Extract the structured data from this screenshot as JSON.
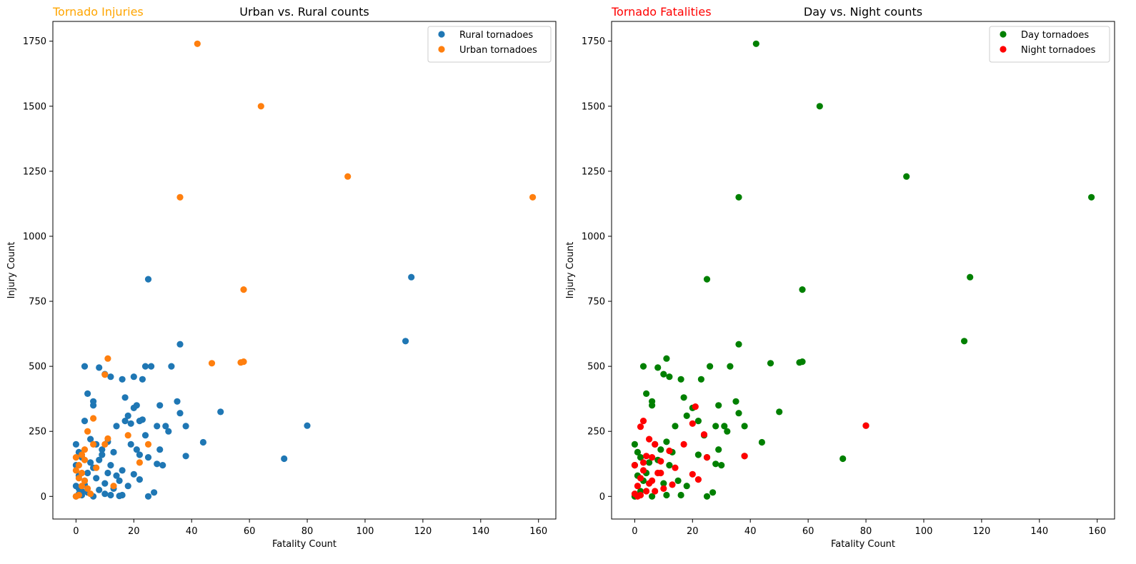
{
  "chart_data": [
    {
      "type": "scatter",
      "title": "Urban vs. Rural counts",
      "corner_title": "Tornado Injuries",
      "corner_title_color": "#ffa500",
      "xlabel": "Fatality Count",
      "ylabel": "Injury Count",
      "xlim": [
        -8,
        166
      ],
      "ylim": [
        -87,
        1826
      ],
      "xticks": [
        0,
        20,
        40,
        60,
        80,
        100,
        120,
        140,
        160
      ],
      "yticks": [
        0,
        250,
        500,
        750,
        1000,
        1250,
        1500,
        1750
      ],
      "grid": false,
      "legend_position": "top-right",
      "series": [
        {
          "name": "Rural tornadoes",
          "color": "#1f77b4",
          "points": [
            [
              0,
              200
            ],
            [
              1,
              170
            ],
            [
              0,
              120
            ],
            [
              2,
              150
            ],
            [
              1,
              80
            ],
            [
              0,
              40
            ],
            [
              3,
              60
            ],
            [
              4,
              90
            ],
            [
              2,
              20
            ],
            [
              5,
              130
            ],
            [
              6,
              110
            ],
            [
              7,
              70
            ],
            [
              8,
              140
            ],
            [
              9,
              160
            ],
            [
              10,
              50
            ],
            [
              11,
              90
            ],
            [
              12,
              120
            ],
            [
              13,
              30
            ],
            [
              14,
              80
            ],
            [
              15,
              60
            ],
            [
              16,
              100
            ],
            [
              3,
              500
            ],
            [
              3,
              290
            ],
            [
              4,
              395
            ],
            [
              6,
              350
            ],
            [
              6,
              365
            ],
            [
              8,
              495
            ],
            [
              10,
              470
            ],
            [
              12,
              460
            ],
            [
              16,
              450
            ],
            [
              17,
              380
            ],
            [
              20,
              460
            ],
            [
              23,
              450
            ],
            [
              24,
              500
            ],
            [
              18,
              310
            ],
            [
              20,
              340
            ],
            [
              21,
              350
            ],
            [
              22,
              290
            ],
            [
              23,
              295
            ],
            [
              19,
              280
            ],
            [
              25,
              835
            ],
            [
              26,
              500
            ],
            [
              29,
              350
            ],
            [
              28,
              270
            ],
            [
              31,
              270
            ],
            [
              32,
              250
            ],
            [
              33,
              500
            ],
            [
              35,
              365
            ],
            [
              36,
              585
            ],
            [
              36,
              320
            ],
            [
              38,
              270
            ],
            [
              38,
              155
            ],
            [
              30,
              120
            ],
            [
              28,
              125
            ],
            [
              29,
              180
            ],
            [
              25,
              150
            ],
            [
              24,
              235
            ],
            [
              22,
              160
            ],
            [
              20,
              85
            ],
            [
              22,
              65
            ],
            [
              18,
              40
            ],
            [
              16,
              5
            ],
            [
              15,
              2
            ],
            [
              25,
              0
            ],
            [
              27,
              15
            ],
            [
              44,
              208
            ],
            [
              50,
              325
            ],
            [
              72,
              145
            ],
            [
              80,
              272
            ],
            [
              114,
              597
            ],
            [
              116,
              843
            ],
            [
              5,
              220
            ],
            [
              7,
              200
            ],
            [
              9,
              180
            ],
            [
              11,
              210
            ],
            [
              13,
              170
            ],
            [
              14,
              270
            ],
            [
              17,
              290
            ],
            [
              19,
              200
            ],
            [
              21,
              180
            ],
            [
              2,
              5
            ],
            [
              1,
              10
            ],
            [
              4,
              15
            ],
            [
              6,
              0
            ],
            [
              8,
              25
            ],
            [
              10,
              10
            ],
            [
              12,
              5
            ],
            [
              0,
              0
            ],
            [
              1,
              30
            ],
            [
              3,
              45
            ]
          ]
        },
        {
          "name": "Urban tornadoes",
          "color": "#ff7f0e",
          "points": [
            [
              42,
              1740
            ],
            [
              64,
              1500
            ],
            [
              94,
              1230
            ],
            [
              36,
              1150
            ],
            [
              158,
              1150
            ],
            [
              58,
              795
            ],
            [
              11,
              530
            ],
            [
              10,
              468
            ],
            [
              47,
              512
            ],
            [
              57,
              515
            ],
            [
              58,
              518
            ],
            [
              6,
              300
            ],
            [
              4,
              250
            ],
            [
              18,
              235
            ],
            [
              11,
              222
            ],
            [
              25,
              200
            ],
            [
              22,
              130
            ],
            [
              10,
              200
            ],
            [
              6,
              200
            ],
            [
              3,
              180
            ],
            [
              7,
              110
            ],
            [
              13,
              40
            ],
            [
              0,
              150
            ],
            [
              1,
              120
            ],
            [
              2,
              90
            ],
            [
              3,
              60
            ],
            [
              4,
              30
            ],
            [
              5,
              10
            ],
            [
              0,
              0
            ],
            [
              1,
              5
            ],
            [
              2,
              40
            ],
            [
              3,
              140
            ],
            [
              1,
              70
            ],
            [
              0,
              100
            ],
            [
              2,
              160
            ]
          ]
        }
      ]
    },
    {
      "type": "scatter",
      "title": "Day vs. Night counts",
      "corner_title": "Tornado Fatalities",
      "corner_title_color": "#ff0000",
      "xlabel": "Fatality Count",
      "ylabel": "Injury Count",
      "xlim": [
        -8,
        166
      ],
      "ylim": [
        -87,
        1826
      ],
      "xticks": [
        0,
        20,
        40,
        60,
        80,
        100,
        120,
        140,
        160
      ],
      "yticks": [
        0,
        250,
        500,
        750,
        1000,
        1250,
        1500,
        1750
      ],
      "grid": false,
      "legend_position": "top-right",
      "series": [
        {
          "name": "Day tornadoes",
          "color": "#008000",
          "points": [
            [
              42,
              1740
            ],
            [
              64,
              1500
            ],
            [
              94,
              1230
            ],
            [
              36,
              1150
            ],
            [
              158,
              1150
            ],
            [
              116,
              843
            ],
            [
              25,
              835
            ],
            [
              58,
              795
            ],
            [
              114,
              597
            ],
            [
              36,
              585
            ],
            [
              11,
              530
            ],
            [
              47,
              512
            ],
            [
              57,
              515
            ],
            [
              58,
              518
            ],
            [
              3,
              500
            ],
            [
              8,
              495
            ],
            [
              10,
              470
            ],
            [
              12,
              460
            ],
            [
              16,
              450
            ],
            [
              23,
              450
            ],
            [
              26,
              500
            ],
            [
              33,
              500
            ],
            [
              4,
              395
            ],
            [
              6,
              365
            ],
            [
              6,
              350
            ],
            [
              17,
              380
            ],
            [
              35,
              365
            ],
            [
              36,
              320
            ],
            [
              50,
              325
            ],
            [
              29,
              350
            ],
            [
              18,
              310
            ],
            [
              20,
              340
            ],
            [
              22,
              290
            ],
            [
              28,
              270
            ],
            [
              31,
              270
            ],
            [
              32,
              250
            ],
            [
              38,
              270
            ],
            [
              44,
              208
            ],
            [
              80,
              272
            ],
            [
              72,
              145
            ],
            [
              38,
              155
            ],
            [
              30,
              120
            ],
            [
              28,
              125
            ],
            [
              29,
              180
            ],
            [
              25,
              150
            ],
            [
              24,
              235
            ],
            [
              22,
              160
            ],
            [
              18,
              40
            ],
            [
              16,
              5
            ],
            [
              25,
              0
            ],
            [
              27,
              15
            ],
            [
              0,
              200
            ],
            [
              1,
              170
            ],
            [
              2,
              150
            ],
            [
              5,
              130
            ],
            [
              7,
              200
            ],
            [
              9,
              180
            ],
            [
              11,
              210
            ],
            [
              13,
              170
            ],
            [
              14,
              270
            ],
            [
              0,
              120
            ],
            [
              1,
              80
            ],
            [
              3,
              60
            ],
            [
              4,
              90
            ],
            [
              8,
              140
            ],
            [
              10,
              50
            ],
            [
              12,
              120
            ],
            [
              15,
              60
            ],
            [
              0,
              0
            ],
            [
              2,
              20
            ],
            [
              6,
              0
            ],
            [
              11,
              5
            ]
          ]
        },
        {
          "name": "Night tornadoes",
          "color": "#ff0000",
          "points": [
            [
              21,
              345
            ],
            [
              3,
              290
            ],
            [
              2,
              268
            ],
            [
              20,
              280
            ],
            [
              24,
              238
            ],
            [
              5,
              220
            ],
            [
              7,
              200
            ],
            [
              17,
              200
            ],
            [
              12,
              175
            ],
            [
              25,
              150
            ],
            [
              4,
              155
            ],
            [
              38,
              155
            ],
            [
              9,
              135
            ],
            [
              14,
              110
            ],
            [
              8,
              90
            ],
            [
              20,
              85
            ],
            [
              22,
              65
            ],
            [
              6,
              60
            ],
            [
              3,
              100
            ],
            [
              2,
              70
            ],
            [
              1,
              40
            ],
            [
              0,
              10
            ],
            [
              4,
              20
            ],
            [
              5,
              50
            ],
            [
              10,
              30
            ],
            [
              13,
              45
            ],
            [
              80,
              272
            ],
            [
              0,
              120
            ],
            [
              1,
              0
            ],
            [
              2,
              5
            ],
            [
              3,
              130
            ],
            [
              6,
              150
            ],
            [
              7,
              20
            ],
            [
              9,
              90
            ]
          ]
        }
      ]
    }
  ]
}
